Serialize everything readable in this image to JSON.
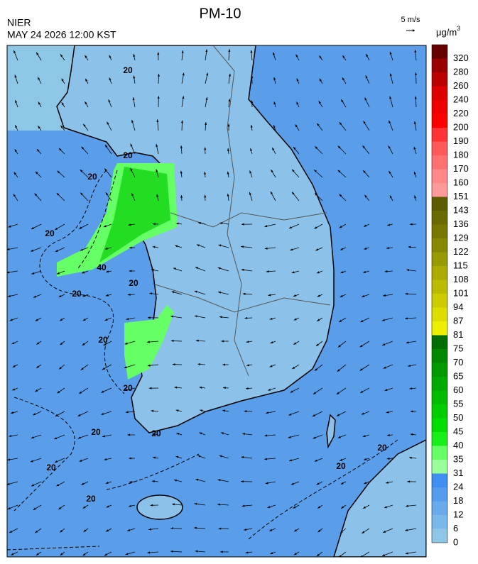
{
  "header": {
    "title": "PM-10",
    "agency": "NIER",
    "datetime": "MAY 24 2026 12:00 KST",
    "wind_scale": "5 m/s",
    "unit": "μg/m",
    "unit_exp": "3"
  },
  "colorbar": {
    "ticks": [
      0,
      6,
      12,
      18,
      24,
      31,
      35,
      40,
      45,
      50,
      55,
      60,
      65,
      70,
      75,
      81,
      87,
      94,
      101,
      108,
      115,
      122,
      129,
      136,
      143,
      151,
      160,
      170,
      180,
      190,
      200,
      220,
      240,
      260,
      280,
      320
    ],
    "colors": [
      "#8ec6e6",
      "#7ab8ea",
      "#68aaec",
      "#559cee",
      "#3f8ff0",
      "#99ff99",
      "#66ff66",
      "#1aee1a",
      "#00dd00",
      "#00cc00",
      "#00bb00",
      "#00aa00",
      "#009900",
      "#008800",
      "#006e00",
      "#eeee00",
      "#dddd00",
      "#cccc00",
      "#bbbb00",
      "#aaaa00",
      "#999900",
      "#888800",
      "#777700",
      "#6a6a00",
      "#5c5c00",
      "#ff9a9a",
      "#ff8888",
      "#ff7070",
      "#ff5a5a",
      "#ff3333",
      "#ff0000",
      "#ee0000",
      "#dd0000",
      "#bb0000",
      "#990000",
      "#660000"
    ]
  },
  "contour_labels": [
    "20",
    "20",
    "20",
    "20",
    "20",
    "20",
    "20",
    "20",
    "20",
    "20",
    "20",
    "20",
    "20",
    "20",
    "40"
  ]
}
